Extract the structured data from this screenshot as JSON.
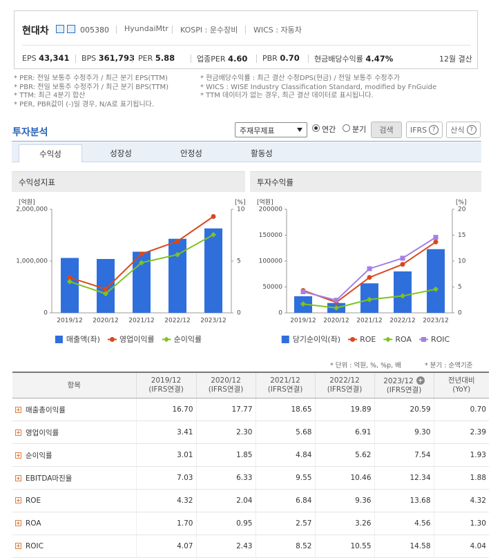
{
  "header": {
    "name": "현대차",
    "code": "005380",
    "eng": "HyundaiMtr",
    "market": "KOSPI : 운수장비",
    "sector": "WICS : 자동차",
    "fiscal": "12월 결산",
    "metrics": [
      {
        "label": "EPS",
        "value": "43,341"
      },
      {
        "label": "BPS",
        "value": "361,793"
      },
      {
        "label": "PER",
        "value": "5.88"
      },
      {
        "label": "업종PER",
        "value": "4.60"
      },
      {
        "label": "PBR",
        "value": "0.70"
      },
      {
        "label": "현금배당수익률",
        "value": "4.47%"
      }
    ]
  },
  "notes": [
    "* PER: 전일 보통주 수정주가 / 최근 분기 EPS(TTM)",
    "* PBR: 전일 보통주 수정주가 / 최근 분기 BPS(TTM)",
    "* TTM: 최근 4분기 합산",
    "* PER, PBR값이 (-)일 경우, N/A로 표기됩니다.",
    "* 현금배당수익률 : 최근 결산 수정DPS(현금) / 전일 보통주 수정주가",
    "* WICS : WISE Industry Classification Standard, modified by FnGuide",
    "* TTM 데이터가 없는 경우, 최근 결산 데이터로 표시됩니다."
  ],
  "toolbar": {
    "title": "투자분석",
    "select": "주재무제표",
    "radios": [
      "연간",
      "분기"
    ],
    "search": "검색",
    "buttons": [
      "IFRS",
      "산식"
    ],
    "help": "?"
  },
  "tabs": [
    "수익성",
    "성장성",
    "안정성",
    "활동성"
  ],
  "chart_data": [
    {
      "type": "combo",
      "title": "수익성지표",
      "y_label": "[억원]",
      "y2_label": "[%]",
      "categories": [
        "2019/12",
        "2020/12",
        "2021/12",
        "2022/12",
        "2023/12"
      ],
      "ylim": [
        0,
        2000000
      ],
      "yticks": [
        0,
        {
          "value": 1000000,
          "label": "1,000,000"
        },
        {
          "value": 2000000,
          "label": "2,000,000"
        }
      ],
      "y2lim": [
        0,
        10
      ],
      "y2ticks": [
        0,
        5,
        10
      ],
      "series": [
        {
          "name": "매출액(좌)",
          "kind": "bar",
          "color": "#2f6fdc",
          "values": [
            1060000,
            1040000,
            1180000,
            1430000,
            1630000
          ]
        },
        {
          "name": "영업이익률",
          "kind": "line",
          "marker": "circle",
          "axis": "y2",
          "color": "#d9481c",
          "values": [
            3.41,
            2.3,
            5.68,
            6.91,
            9.3
          ]
        },
        {
          "name": "순이익률",
          "kind": "line",
          "marker": "diamond",
          "axis": "y2",
          "color": "#7fc31c",
          "values": [
            3.01,
            1.85,
            4.84,
            5.62,
            7.54
          ]
        }
      ]
    },
    {
      "type": "combo",
      "title": "투자수익률",
      "y_label": "[억원]",
      "y2_label": "[%]",
      "categories": [
        "2019/12",
        "2020/12",
        "2021/12",
        "2022/12",
        "2023/12"
      ],
      "ylim": [
        0,
        200000
      ],
      "yticks": [
        0,
        50000,
        100000,
        150000,
        200000
      ],
      "y2lim": [
        0,
        20
      ],
      "y2ticks": [
        0,
        5,
        10,
        15,
        20
      ],
      "series": [
        {
          "name": "당기순이익(좌)",
          "kind": "bar",
          "color": "#2f6fdc",
          "values": [
            32000,
            19000,
            57000,
            80000,
            123000
          ]
        },
        {
          "name": "ROE",
          "kind": "line",
          "marker": "circle",
          "axis": "y2",
          "color": "#d9481c",
          "values": [
            4.32,
            2.04,
            6.84,
            9.36,
            13.68
          ]
        },
        {
          "name": "ROA",
          "kind": "line",
          "marker": "diamond",
          "axis": "y2",
          "color": "#7fc31c",
          "values": [
            1.7,
            0.95,
            2.57,
            3.26,
            4.56
          ]
        },
        {
          "name": "ROIC",
          "kind": "line",
          "marker": "square",
          "axis": "y2",
          "color": "#a67fe3",
          "values": [
            4.07,
            2.43,
            8.52,
            10.55,
            14.58
          ]
        }
      ]
    }
  ],
  "table": {
    "unit_note": "* 단위 : 억원, %, %p, 배",
    "basis_note": "* 분기 : 순액기준",
    "columns": [
      {
        "label": "항목"
      },
      {
        "label": "2019/12",
        "sub": "(IFRS연결)"
      },
      {
        "label": "2020/12",
        "sub": "(IFRS연결)"
      },
      {
        "label": "2021/12",
        "sub": "(IFRS연결)"
      },
      {
        "label": "2022/12",
        "sub": "(IFRS연결)"
      },
      {
        "label": "2023/12",
        "sub": "(IFRS연결)"
      },
      {
        "label": "전년대비",
        "sub": "(YoY)"
      }
    ],
    "rows": [
      [
        "매출총이익률",
        "16.70",
        "17.77",
        "18.65",
        "19.89",
        "20.59",
        "0.70"
      ],
      [
        "영업이익률",
        "3.41",
        "2.30",
        "5.68",
        "6.91",
        "9.30",
        "2.39"
      ],
      [
        "순이익률",
        "3.01",
        "1.85",
        "4.84",
        "5.62",
        "7.54",
        "1.93"
      ],
      [
        "EBITDA마진율",
        "7.03",
        "6.33",
        "9.55",
        "10.46",
        "12.34",
        "1.88"
      ],
      [
        "ROE",
        "4.32",
        "2.04",
        "6.84",
        "9.36",
        "13.68",
        "4.32"
      ],
      [
        "ROA",
        "1.70",
        "0.95",
        "2.57",
        "3.26",
        "4.56",
        "1.30"
      ],
      [
        "ROIC",
        "4.07",
        "2.43",
        "8.52",
        "10.55",
        "14.58",
        "4.04"
      ]
    ]
  }
}
